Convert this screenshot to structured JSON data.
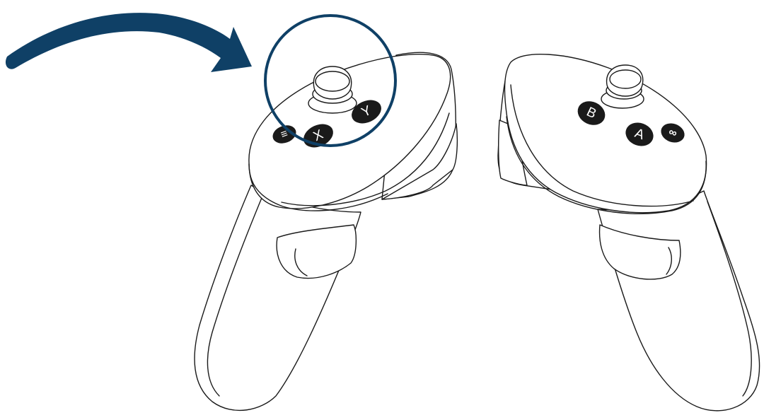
{
  "colors": {
    "accent": "#0f4066",
    "outline": "#1a1a1a",
    "button_fill": "#1a1a1a",
    "button_text": "#ffffff",
    "background": "#ffffff"
  },
  "left_controller": {
    "buttons": {
      "x": "X",
      "y": "Y",
      "menu": "≡"
    }
  },
  "right_controller": {
    "buttons": {
      "a": "A",
      "b": "B",
      "oculus": "∞"
    }
  },
  "highlight": {
    "target": "left-thumbstick-and-y-x-buttons",
    "shape": "circle",
    "pointer": "curved-arrow"
  }
}
